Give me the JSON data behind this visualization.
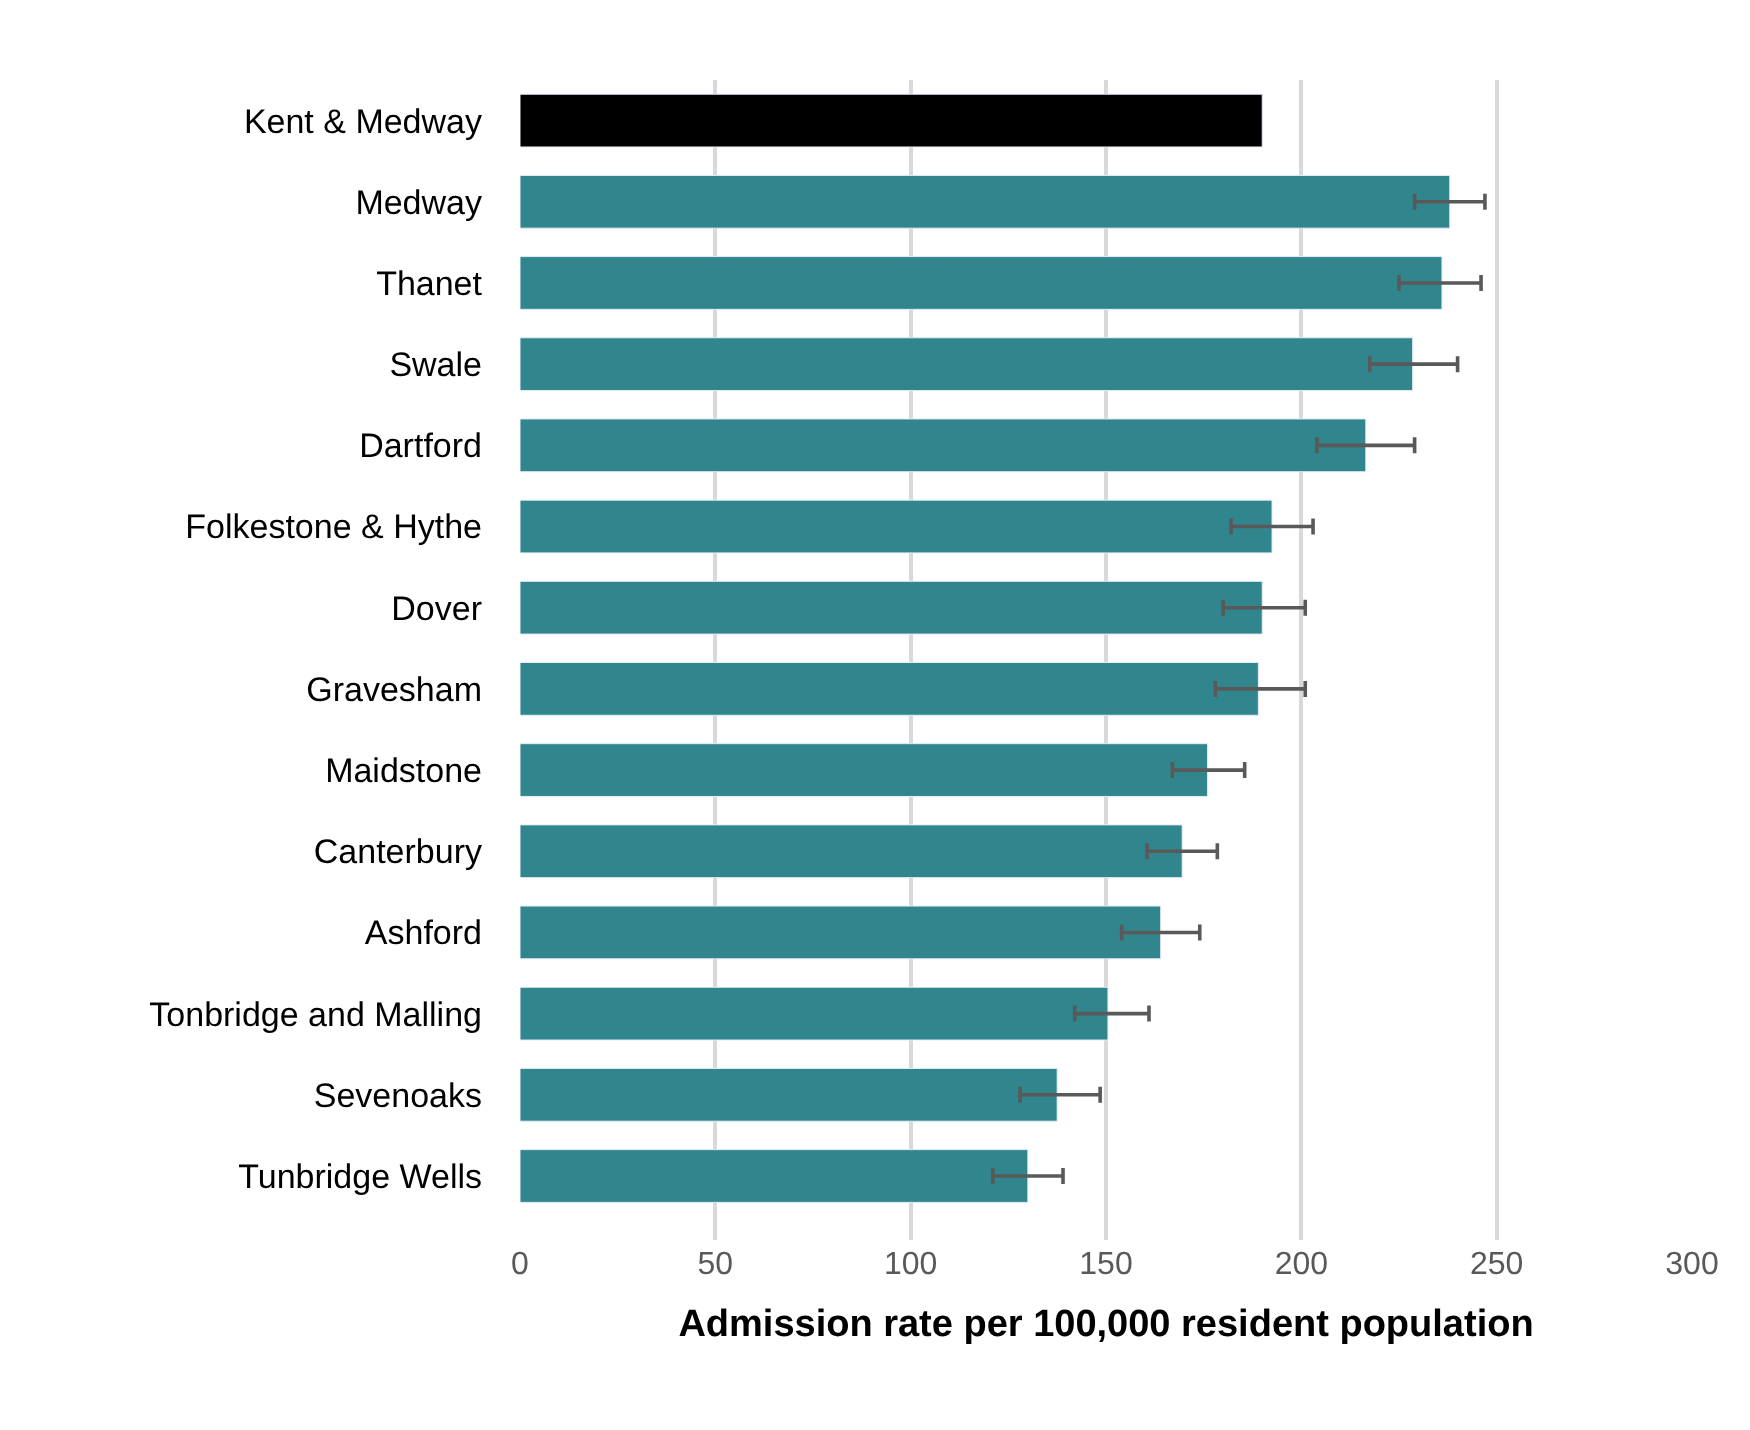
{
  "chart_data": {
    "type": "bar",
    "orientation": "horizontal",
    "xlabel": "Admission rate per 100,000 resident population",
    "categories": [
      "Kent & Medway",
      "Medway",
      "Thanet",
      "Swale",
      "Dartford",
      "Folkestone & Hythe",
      "Dover",
      "Gravesham",
      "Maidstone",
      "Canterbury",
      "Ashford",
      "Tonbridge and Malling",
      "Sevenoaks",
      "Tunbridge Wells"
    ],
    "values": [
      190,
      238,
      236,
      228.5,
      216.5,
      192.5,
      190,
      189,
      176,
      169.5,
      164,
      150.5,
      137.5,
      130
    ],
    "errors": [
      null,
      [
        229,
        247
      ],
      [
        225,
        246
      ],
      [
        217.5,
        240
      ],
      [
        204,
        229
      ],
      [
        182,
        203
      ],
      [
        180,
        201
      ],
      [
        178,
        201
      ],
      [
        167,
        185.5
      ],
      [
        160.5,
        178.5
      ],
      [
        154,
        174
      ],
      [
        142,
        161
      ],
      [
        128,
        148.5
      ],
      [
        121,
        139
      ]
    ],
    "colors": [
      "#000000",
      "#31868e",
      "#31868e",
      "#31868e",
      "#31868e",
      "#31868e",
      "#31868e",
      "#31868e",
      "#31868e",
      "#31868e",
      "#31868e",
      "#31868e",
      "#31868e",
      "#31868e"
    ],
    "xlim": [
      0,
      300
    ],
    "xticks": [
      0,
      50,
      100,
      150,
      200,
      250,
      300
    ],
    "grid": "x",
    "legend": false
  }
}
